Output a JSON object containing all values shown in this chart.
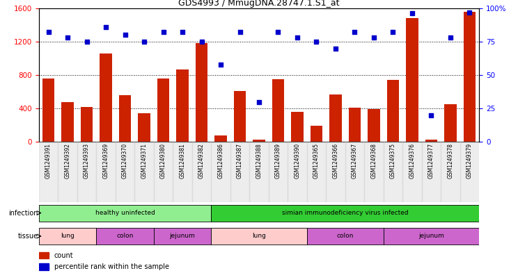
{
  "title": "GDS4993 / MmugDNA.28747.1.S1_at",
  "samples": [
    "GSM1249391",
    "GSM1249392",
    "GSM1249393",
    "GSM1249369",
    "GSM1249370",
    "GSM1249371",
    "GSM1249380",
    "GSM1249381",
    "GSM1249382",
    "GSM1249386",
    "GSM1249387",
    "GSM1249388",
    "GSM1249389",
    "GSM1249390",
    "GSM1249365",
    "GSM1249366",
    "GSM1249367",
    "GSM1249368",
    "GSM1249375",
    "GSM1249376",
    "GSM1249377",
    "GSM1249378",
    "GSM1249379"
  ],
  "counts": [
    760,
    480,
    420,
    1060,
    560,
    340,
    760,
    870,
    1180,
    80,
    610,
    30,
    750,
    360,
    190,
    570,
    410,
    390,
    740,
    1480,
    30,
    450,
    1560
  ],
  "percentiles": [
    82,
    78,
    75,
    86,
    80,
    75,
    82,
    82,
    75,
    58,
    82,
    30,
    82,
    78,
    75,
    70,
    82,
    78,
    82,
    96,
    20,
    78,
    97
  ],
  "infection_groups": [
    {
      "label": "healthy uninfected",
      "start": 0,
      "end": 9,
      "color": "#90EE90"
    },
    {
      "label": "simian immunodeficiency virus infected",
      "start": 9,
      "end": 23,
      "color": "#33CC33"
    }
  ],
  "tissue_groups": [
    {
      "label": "lung",
      "start": 0,
      "end": 3,
      "color": "#FFCCCC"
    },
    {
      "label": "colon",
      "start": 3,
      "end": 6,
      "color": "#CC66CC"
    },
    {
      "label": "jejunum",
      "start": 6,
      "end": 9,
      "color": "#CC66CC"
    },
    {
      "label": "lung",
      "start": 9,
      "end": 14,
      "color": "#FFCCCC"
    },
    {
      "label": "colon",
      "start": 14,
      "end": 18,
      "color": "#CC66CC"
    },
    {
      "label": "jejunum",
      "start": 18,
      "end": 23,
      "color": "#CC66CC"
    }
  ],
  "bar_color": "#CC2200",
  "dot_color": "#0000CC",
  "ylim_left": [
    0,
    1600
  ],
  "ylim_right": [
    0,
    100
  ],
  "yticks_left": [
    0,
    400,
    800,
    1200,
    1600
  ],
  "yticks_right": [
    0,
    25,
    50,
    75,
    100
  ],
  "ytick_right_labels": [
    "0",
    "25",
    "50",
    "75",
    "100%"
  ],
  "grid_lines": [
    400,
    800,
    1200
  ],
  "bg_color": "#FFFFFF"
}
